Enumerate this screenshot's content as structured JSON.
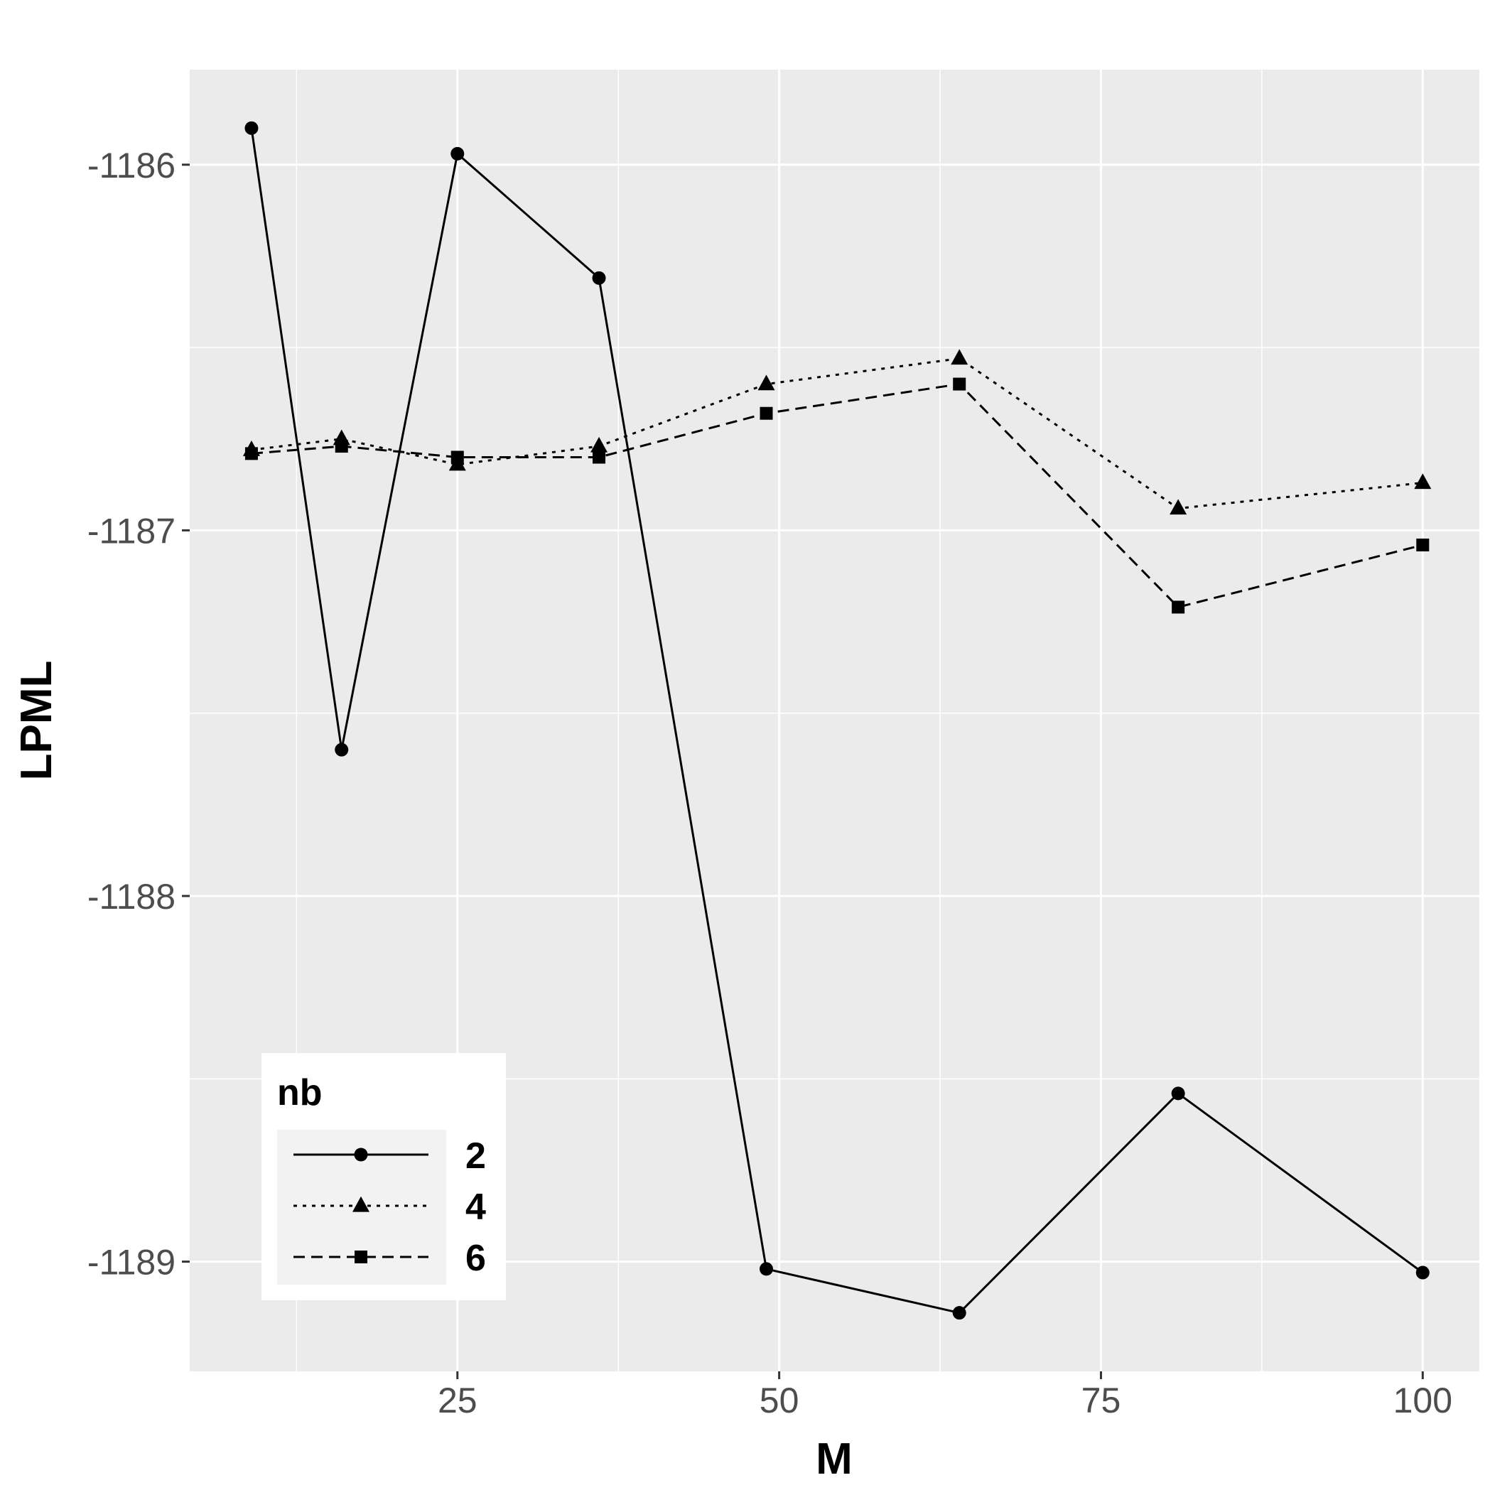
{
  "chart_data": {
    "type": "line",
    "xlabel": "M",
    "ylabel": "LPML",
    "xlim": [
      4.2,
      104.4
    ],
    "ylim": [
      -1189.3,
      -1185.74
    ],
    "x_ticks": [
      {
        "value": 25,
        "label": "25"
      },
      {
        "value": 50,
        "label": "50"
      },
      {
        "value": 75,
        "label": "75"
      },
      {
        "value": 100,
        "label": "100"
      }
    ],
    "x_minor_ticks": [
      12.5,
      37.5,
      62.5,
      87.5
    ],
    "y_ticks": [
      {
        "value": -1186,
        "label": "-1186"
      },
      {
        "value": -1187,
        "label": "-1187"
      },
      {
        "value": -1188,
        "label": "-1188"
      },
      {
        "value": -1189,
        "label": "-1189"
      }
    ],
    "y_minor_ticks": [
      -1186.5,
      -1187.5,
      -1188.5
    ],
    "grid": true,
    "legend": {
      "title": "nb",
      "position": "bottom-left"
    },
    "x": [
      9,
      16,
      25,
      36,
      49,
      64,
      81,
      100
    ],
    "series": [
      {
        "name": "2",
        "linestyle": "solid",
        "marker": "circle",
        "values": [
          -1185.9,
          -1187.6,
          -1185.97,
          -1186.31,
          -1189.02,
          -1189.14,
          -1188.54,
          -1189.03
        ]
      },
      {
        "name": "4",
        "linestyle": "dotted",
        "marker": "triangle",
        "values": [
          -1186.78,
          -1186.75,
          -1186.82,
          -1186.77,
          -1186.6,
          -1186.53,
          -1186.94,
          -1186.87
        ]
      },
      {
        "name": "6",
        "linestyle": "dashed",
        "marker": "square",
        "values": [
          -1186.79,
          -1186.77,
          -1186.8,
          -1186.8,
          -1186.68,
          -1186.6,
          -1187.21,
          -1187.04
        ]
      }
    ]
  }
}
